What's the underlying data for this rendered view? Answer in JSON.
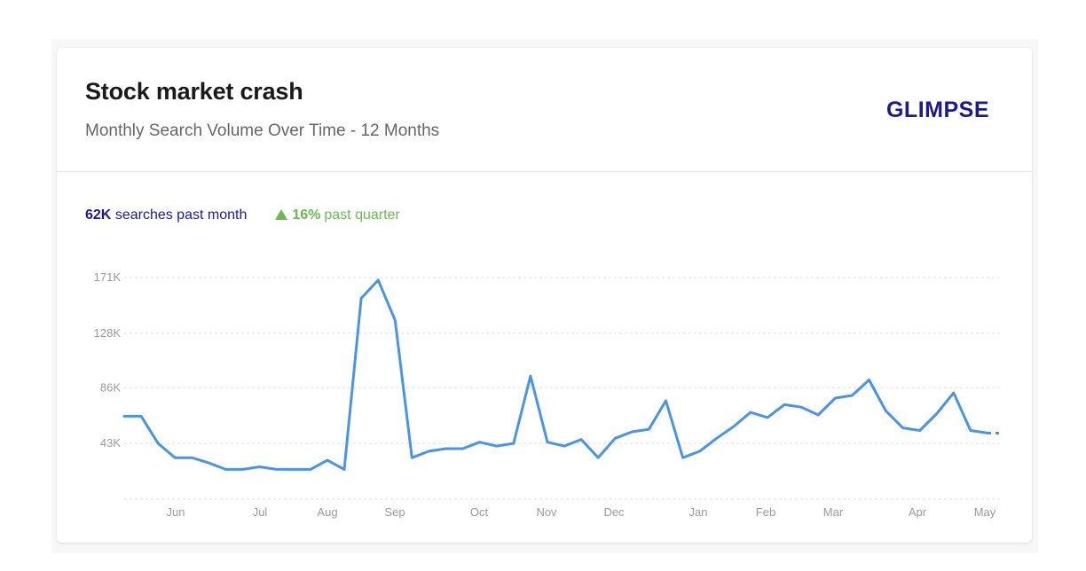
{
  "header": {
    "title": "Stock market crash",
    "subtitle": "Monthly Search Volume Over Time - 12 Months",
    "logo_text": "GLIMPSE"
  },
  "stats": {
    "month_value": "62K",
    "month_label": "searches past month",
    "quarter_value": "16%",
    "quarter_label": "past quarter"
  },
  "colors": {
    "line": "#4a94e0",
    "logo": "#1c1a8c",
    "month_stat": "#1c1a8c",
    "quarter_stat": "#6cb954",
    "grid": "#dddddd",
    "tick_text": "#9a9a9a"
  },
  "chart_data": {
    "type": "line",
    "title": "Stock market crash",
    "subtitle": "Monthly Search Volume Over Time - 12 Months",
    "xlabel": "",
    "ylabel": "",
    "x_ticks": [
      "Jun",
      "Jul",
      "Aug",
      "Sep",
      "Oct",
      "Nov",
      "Dec",
      "Jan",
      "Feb",
      "Mar",
      "Apr",
      "May"
    ],
    "y_ticks": [
      {
        "value": 43000,
        "label": "43K"
      },
      {
        "value": 86000,
        "label": "86K"
      },
      {
        "value": 128000,
        "label": "128K"
      },
      {
        "value": 171000,
        "label": "171K"
      }
    ],
    "ylim": [
      0,
      171000
    ],
    "grid": true,
    "series": [
      {
        "name": "",
        "values": [
          64000,
          64000,
          43000,
          32000,
          32000,
          28000,
          23000,
          23000,
          25000,
          23000,
          23000,
          23000,
          30000,
          23000,
          155000,
          169000,
          138000,
          32000,
          37000,
          39000,
          39000,
          44000,
          41000,
          43000,
          95000,
          44000,
          41000,
          46000,
          32000,
          47000,
          52000,
          54000,
          76000,
          32000,
          37000,
          47000,
          56000,
          67000,
          63000,
          73000,
          71000,
          65000,
          78000,
          80000,
          92000,
          68000,
          55000,
          53000,
          66000,
          82000,
          53000,
          51000
        ]
      }
    ],
    "dashed_tail_value": 51000
  }
}
